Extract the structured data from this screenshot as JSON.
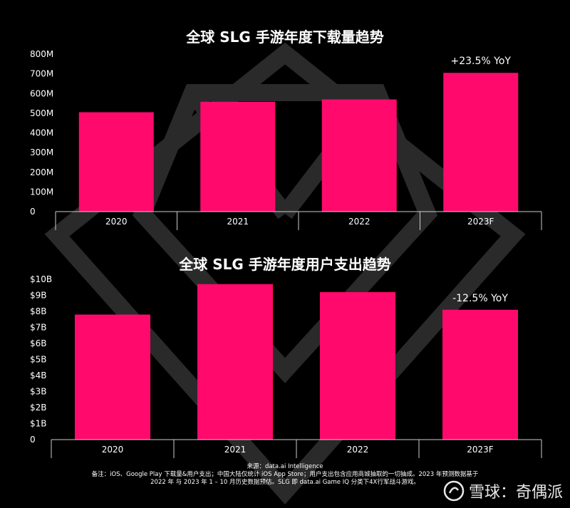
{
  "chart_data": [
    {
      "type": "bar",
      "title": "全球 SLG 手游年度下载量趋势",
      "categories": [
        "2020",
        "2021",
        "2022",
        "2023F"
      ],
      "values": [
        505,
        558,
        570,
        705
      ],
      "unit": "M",
      "y_ticks": [
        "0",
        "100M",
        "200M",
        "300M",
        "400M",
        "500M",
        "600M",
        "700M",
        "800M"
      ],
      "ylim": [
        0,
        800
      ],
      "annotation": {
        "category": "2023F",
        "text": "+23.5% YoY"
      },
      "bar_color": "#ff0a6c",
      "grid": false
    },
    {
      "type": "bar",
      "title": "全球 SLG 手游年度用户支出趋势",
      "categories": [
        "2020",
        "2021",
        "2022",
        "2023F"
      ],
      "values": [
        7.8,
        9.7,
        9.2,
        8.1
      ],
      "unit": "B USD",
      "y_ticks": [
        "0",
        "$1B",
        "$2B",
        "$3B",
        "$4B",
        "$5B",
        "$6B",
        "$7B",
        "$8B",
        "$9B",
        "$10B"
      ],
      "ylim": [
        0,
        10
      ],
      "annotation": {
        "category": "2023F",
        "text": "-12.5% YoY"
      },
      "bar_color": "#ff0a6c",
      "grid": false
    }
  ],
  "footer": {
    "source": "来源：data.ai Intelligence",
    "note_line1": "备注：iOS、Google Play 下载量&用户支出；中国大陆仅统计 iOS App Store；用户支出包含应用商城抽取的一切抽成。2023 年预测数据基于",
    "note_line2": "2022 年 与 2023 年 1 – 10 月历史数据预估。SLG 即 data.ai Game IQ 分类下4X行军战斗游戏。"
  },
  "watermark": {
    "text": "雪球：奇偶派"
  },
  "colors": {
    "background": "#000000",
    "bar": "#ff0a6c",
    "text": "#ffffff",
    "axis": "#cccccc"
  }
}
